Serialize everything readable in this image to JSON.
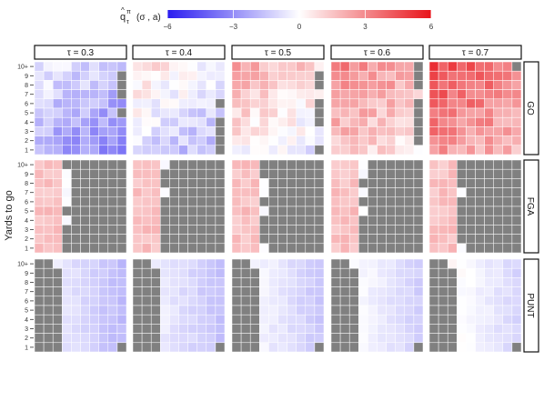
{
  "chart_data": {
    "type": "heatmap",
    "legend": {
      "title_parts": [
        "q",
        "τ",
        "π",
        "(σ , a)"
      ],
      "ticks": [
        -6,
        -3,
        0,
        3,
        6
      ],
      "tick_labels": [
        "−6",
        "−3",
        "0",
        "3",
        "6"
      ],
      "range": [
        -6,
        6
      ],
      "colors": {
        "low": "#2a1cf0",
        "mid": "#ffffff",
        "high": "#e8141a"
      },
      "placement": "top"
    },
    "ylabel": "Yards to go",
    "y_ticks": [
      "1",
      "2",
      "3",
      "4",
      "5",
      "6",
      "7",
      "8",
      "9",
      "10+"
    ],
    "columns": [
      "τ = 0.3",
      "τ = 0.4",
      "τ = 0.5",
      "τ = 0.6",
      "τ = 0.7"
    ],
    "rows": [
      "GO",
      "FGA",
      "PUNT"
    ],
    "grid_cols": 10,
    "missing_color": "#808080",
    "cell_border_color": "#ffffff",
    "field_position_bins": 10
  }
}
